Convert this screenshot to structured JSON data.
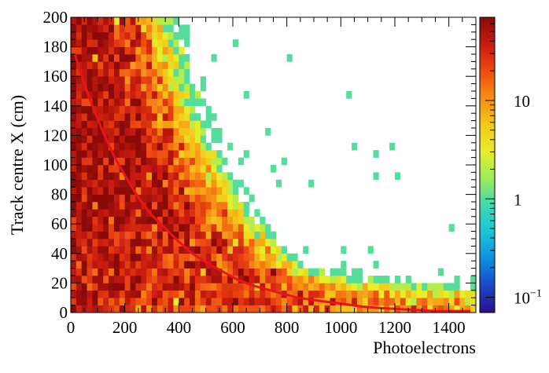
{
  "chart_data": {
    "type": "heatmap",
    "title": "",
    "xlabel": "Photoelectrons",
    "ylabel": "Track centre X (cm)",
    "xlim": [
      0,
      1500
    ],
    "ylim": [
      0,
      200
    ],
    "x_ticks": [
      {
        "value": 0,
        "label": "0"
      },
      {
        "value": 200,
        "label": "200"
      },
      {
        "value": 400,
        "label": "400"
      },
      {
        "value": 600,
        "label": "600"
      },
      {
        "value": 800,
        "label": "800"
      },
      {
        "value": 1000,
        "label": "1000"
      },
      {
        "value": 1200,
        "label": "1200"
      },
      {
        "value": 1400,
        "label": "1400"
      }
    ],
    "y_ticks": [
      {
        "value": 0,
        "label": "0"
      },
      {
        "value": 20,
        "label": "20"
      },
      {
        "value": 40,
        "label": "40"
      },
      {
        "value": 60,
        "label": "60"
      },
      {
        "value": 80,
        "label": "80"
      },
      {
        "value": 100,
        "label": "100"
      },
      {
        "value": 120,
        "label": "120"
      },
      {
        "value": 140,
        "label": "140"
      },
      {
        "value": 160,
        "label": "160"
      },
      {
        "value": 180,
        "label": "180"
      },
      {
        "value": 200,
        "label": "200"
      }
    ],
    "bin_width_x": 20,
    "bin_width_y": 5,
    "colorbar": {
      "scale": "log",
      "range": [
        0.07,
        70
      ],
      "ticks": [
        {
          "value": 0.1,
          "label": "10",
          "exponent": "−1"
        },
        {
          "value": 1,
          "label": "1"
        },
        {
          "value": 10,
          "label": "10"
        }
      ]
    },
    "fit_curve": {
      "color": "#e8141a",
      "points": [
        [
          15,
          175
        ],
        [
          40,
          160
        ],
        [
          80,
          140
        ],
        [
          120,
          122
        ],
        [
          160,
          106
        ],
        [
          200,
          93
        ],
        [
          250,
          78
        ],
        [
          300,
          66
        ],
        [
          350,
          57
        ],
        [
          400,
          48
        ],
        [
          450,
          40
        ],
        [
          500,
          34
        ],
        [
          560,
          28
        ],
        [
          620,
          22
        ],
        [
          680,
          18
        ],
        [
          760,
          14
        ],
        [
          840,
          10
        ],
        [
          920,
          8
        ],
        [
          1000,
          6
        ],
        [
          1080,
          4
        ],
        [
          1150,
          3
        ],
        [
          1250,
          2
        ],
        [
          1350,
          1
        ],
        [
          1480,
          1
        ]
      ]
    },
    "colormap": [
      "#2c0e8c",
      "#1a46c8",
      "#0d8fe0",
      "#1cc4d8",
      "#3ed9b0",
      "#9eec5a",
      "#e6ee28",
      "#f5c71a",
      "#f78e14",
      "#ee4a12",
      "#c81a10",
      "#8a0a08"
    ],
    "density_model": {
      "seed": 12345,
      "peak": 60,
      "decay": 0.0205,
      "spread_base": 55,
      "spread_slope": 0.45,
      "background": 0.18,
      "background_decay": 0.0026,
      "noise_sigma": 0.55
    }
  }
}
